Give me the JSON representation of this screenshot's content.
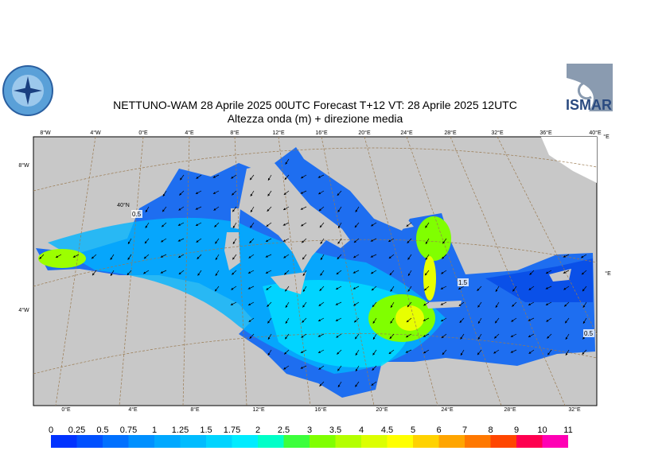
{
  "header": {
    "title": "NETTUNO-WAM  28   Aprile  2025 00UTC Forecast T+12 VT: 28   Aprile  2025 12UTC",
    "subtitle": "Altezza onda (m) + direzione media",
    "logo_text": "ISMAR"
  },
  "map": {
    "top_labels": [
      "8°W",
      "4°W",
      "0°E",
      "4°E",
      "8°E",
      "12°E",
      "16°E",
      "20°E",
      "24°E",
      "28°E",
      "32°E",
      "36°E",
      "40°E"
    ],
    "right_labels": [
      "°E",
      "°E"
    ],
    "left_labels": [
      "8°W",
      "40°N",
      "4°W"
    ],
    "bottom_labels": [
      "0°E",
      "4°E",
      "8°E",
      "12°E",
      "16°E",
      "20°E",
      "24°E",
      "28°E",
      "32°E"
    ],
    "contour_labels": [
      "0.5",
      "1.5",
      "0.5"
    ]
  },
  "legend": {
    "levels": [
      0,
      0.25,
      0.5,
      0.75,
      1,
      1.25,
      1.5,
      1.75,
      2,
      2.5,
      3,
      3.5,
      4,
      4.5,
      5,
      6,
      7,
      8,
      9,
      10,
      11
    ],
    "colors": [
      "#0032ff",
      "#0050ff",
      "#0070ff",
      "#0090ff",
      "#00a8ff",
      "#00bcff",
      "#00d4ff",
      "#00ecff",
      "#00ffc8",
      "#3cff3c",
      "#80ff00",
      "#b4ff00",
      "#dcff00",
      "#ffff00",
      "#ffd200",
      "#ffa500",
      "#ff7800",
      "#ff4600",
      "#ff0050",
      "#ff00b4"
    ]
  }
}
